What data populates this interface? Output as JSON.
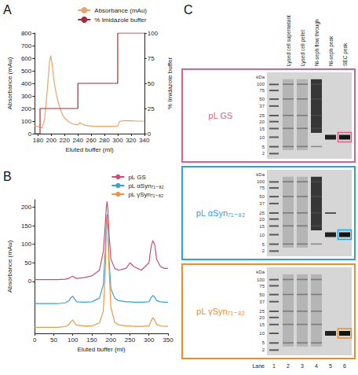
{
  "chart_data": [
    {
      "panel_label": "A",
      "type": "line",
      "xlabel": "Eluted buffer (ml)",
      "ylabel": "Absorbance (mAu)",
      "y2label": "% Imidazole buffer",
      "xlim": [
        175,
        340
      ],
      "xticks": [
        180,
        200,
        220,
        240,
        260,
        280,
        300,
        320,
        340
      ],
      "ylim": [
        0,
        800
      ],
      "yticks": [
        0,
        100,
        200,
        300,
        400,
        500,
        600,
        700,
        800
      ],
      "y2lim": [
        0,
        100
      ],
      "y2ticks": [
        0,
        25,
        50,
        75,
        100
      ],
      "grid": false,
      "legend": "top right",
      "series": [
        {
          "name": "Absorbance (mAu)",
          "color": "#e8a46b",
          "x": [
            175,
            180,
            183,
            186,
            190,
            194,
            197,
            199,
            201,
            204,
            208,
            212,
            216,
            220,
            226,
            232,
            238,
            241,
            243,
            246,
            250,
            260,
            270,
            280,
            290,
            298,
            300,
            302,
            304,
            310,
            320,
            330,
            340
          ],
          "values": [
            60,
            58,
            50,
            45,
            120,
            350,
            560,
            620,
            560,
            420,
            300,
            220,
            160,
            125,
            95,
            78,
            70,
            75,
            88,
            78,
            68,
            60,
            58,
            58,
            58,
            58,
            60,
            90,
            100,
            102,
            102,
            100,
            100
          ]
        },
        {
          "name": "% Imidazole buffer",
          "color": "#a52a3a",
          "axis": "y2",
          "x": [
            175,
            183,
            183,
            240,
            240,
            300,
            300,
            340
          ],
          "values": [
            0,
            0,
            25,
            25,
            50,
            50,
            100,
            100
          ]
        }
      ]
    },
    {
      "panel_label": "B",
      "type": "line",
      "xlabel": "Eluted buffer (ml)",
      "ylabel": "Absorbance (mAu)",
      "x": [
        0,
        20,
        40,
        60,
        80,
        90,
        95,
        100,
        105,
        110,
        130,
        150,
        170,
        180,
        185,
        188,
        190,
        192,
        195,
        200,
        210,
        220,
        240,
        250,
        260,
        280,
        300,
        305,
        310,
        315,
        320,
        330,
        340,
        350
      ],
      "xlim": [
        0,
        350
      ],
      "xticks": [
        0,
        50,
        100,
        150,
        200,
        250,
        300,
        350
      ],
      "ylim": [
        -140,
        220
      ],
      "yticks": [
        0,
        50,
        100,
        150,
        200
      ],
      "grid": false,
      "legend": "top right",
      "series": [
        {
          "name": "pL GS",
          "color": "#d04a78",
          "values": [
            5,
            5,
            5,
            5,
            6,
            8,
            12,
            14,
            10,
            8,
            10,
            15,
            30,
            80,
            150,
            200,
            215,
            195,
            130,
            60,
            35,
            30,
            35,
            50,
            40,
            30,
            50,
            90,
            110,
            100,
            60,
            40,
            35,
            35
          ]
        },
        {
          "name": "pL αSyn₇₁₋₈₂",
          "color": "#3d9fd6",
          "values": [
            -60,
            -60,
            -60,
            -60,
            -58,
            -52,
            -44,
            -40,
            -48,
            -55,
            -56,
            -55,
            -45,
            -10,
            80,
            160,
            180,
            150,
            60,
            -20,
            -45,
            -52,
            -55,
            -55,
            -56,
            -56,
            -55,
            -45,
            -38,
            -42,
            -52,
            -55,
            -56,
            -56
          ]
        },
        {
          "name": "pL γSyn₇₁₋₈₂",
          "color": "#e8974a",
          "values": [
            -124,
            -124,
            -124,
            -124,
            -122,
            -116,
            -108,
            -104,
            -112,
            -118,
            -120,
            -120,
            -112,
            -80,
            20,
            130,
            170,
            140,
            40,
            -70,
            -110,
            -117,
            -120,
            -120,
            -121,
            -121,
            -120,
            -108,
            -98,
            -104,
            -116,
            -120,
            -121,
            -121
          ]
        }
      ]
    }
  ],
  "panel_c": {
    "panel_label": "C",
    "lane_headers": [
      "Lysed cell supernatant",
      "Lysed cell pellet",
      "Ni-seph flow through",
      "Ni-seph peak",
      "SEC peak"
    ],
    "lane_title": "Lane",
    "lanes": [
      1,
      2,
      3,
      4,
      5,
      6
    ],
    "kda_label": "kDa",
    "markers_kda": [
      100,
      75,
      50,
      37,
      25,
      20,
      15,
      10,
      5,
      2
    ],
    "gels": [
      {
        "label": "pL GS",
        "color": "#d9628c"
      },
      {
        "label": "pL αSyn₇₁₋₈₂",
        "color": "#2aa4d8"
      },
      {
        "label": "pL γSyn₇₁₋₈₂",
        "color": "#e8902c"
      }
    ]
  }
}
